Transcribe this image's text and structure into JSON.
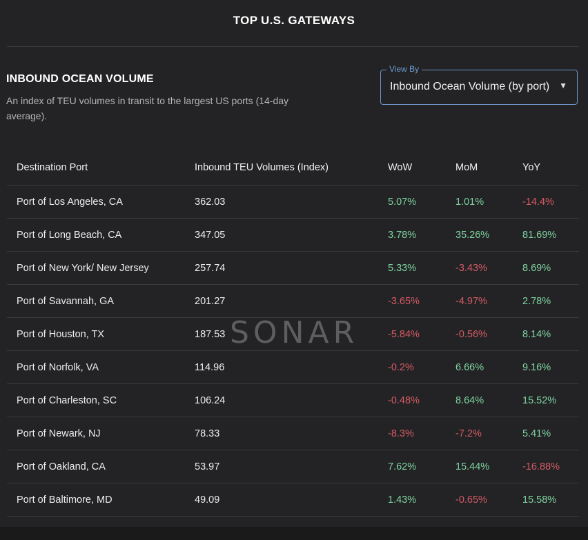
{
  "header": {
    "title": "TOP U.S. GATEWAYS"
  },
  "section": {
    "title": "INBOUND OCEAN VOLUME",
    "description": "An index of TEU volumes in transit to the largest US ports (14-day average)."
  },
  "view_select": {
    "legend": "View By",
    "value": "Inbound Ocean Volume (by port)",
    "caret_icon": "chevron-down-icon"
  },
  "table": {
    "columns": [
      "Destination Port",
      "Inbound TEU Volumes (Index)",
      "WoW",
      "MoM",
      "YoY"
    ],
    "rows": [
      [
        "Port of Los Angeles, CA",
        "362.03",
        "5.07%",
        "1.01%",
        "-14.4%"
      ],
      [
        "Port of Long Beach, CA",
        "347.05",
        "3.78%",
        "35.26%",
        "81.69%"
      ],
      [
        "Port of New York/ New Jersey",
        "257.74",
        "5.33%",
        "-3.43%",
        "8.69%"
      ],
      [
        "Port of Savannah, GA",
        "201.27",
        "-3.65%",
        "-4.97%",
        "2.78%"
      ],
      [
        "Port of Houston, TX",
        "187.53",
        "-5.84%",
        "-0.56%",
        "8.14%"
      ],
      [
        "Port of Norfolk, VA",
        "114.96",
        "-0.2%",
        "6.66%",
        "9.16%"
      ],
      [
        "Port of Charleston, SC",
        "106.24",
        "-0.48%",
        "8.64%",
        "15.52%"
      ],
      [
        "Port of Newark, NJ",
        "78.33",
        "-8.3%",
        "-7.2%",
        "5.41%"
      ],
      [
        "Port of Oakland, CA",
        "53.97",
        "7.62%",
        "15.44%",
        "-16.88%"
      ],
      [
        "Port of Baltimore, MD",
        "49.09",
        "1.43%",
        "-0.65%",
        "15.58%"
      ]
    ]
  },
  "watermark": "SONAR",
  "colors": {
    "positive": "#7ed3a0",
    "negative": "#d45a64",
    "accent": "#6d95c8"
  }
}
